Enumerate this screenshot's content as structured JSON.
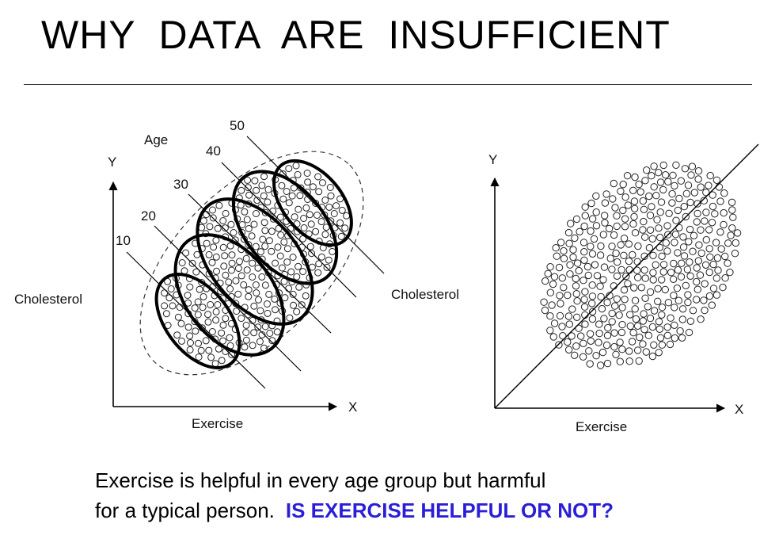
{
  "slide": {
    "title": "WHY  DATA  ARE  INSUFFICIENT"
  },
  "left_diagram": {
    "y_axis_letter": "Y",
    "x_axis_letter": "X",
    "y_axis_label": "Cholesterol",
    "x_axis_label": "Exercise",
    "group_title": "Age",
    "age_groups": [
      "10",
      "20",
      "30",
      "40",
      "50"
    ]
  },
  "right_diagram": {
    "y_axis_letter": "Y",
    "x_axis_letter": "X",
    "y_axis_label": "Cholesterol",
    "x_axis_label": "Exercise"
  },
  "caption": {
    "line1": "Exercise is helpful in every age group but harmful",
    "line2": "for a typical person.",
    "question": "IS EXERCISE HELPFUL OR NOT?",
    "question_color": "#2a1fd6"
  }
}
